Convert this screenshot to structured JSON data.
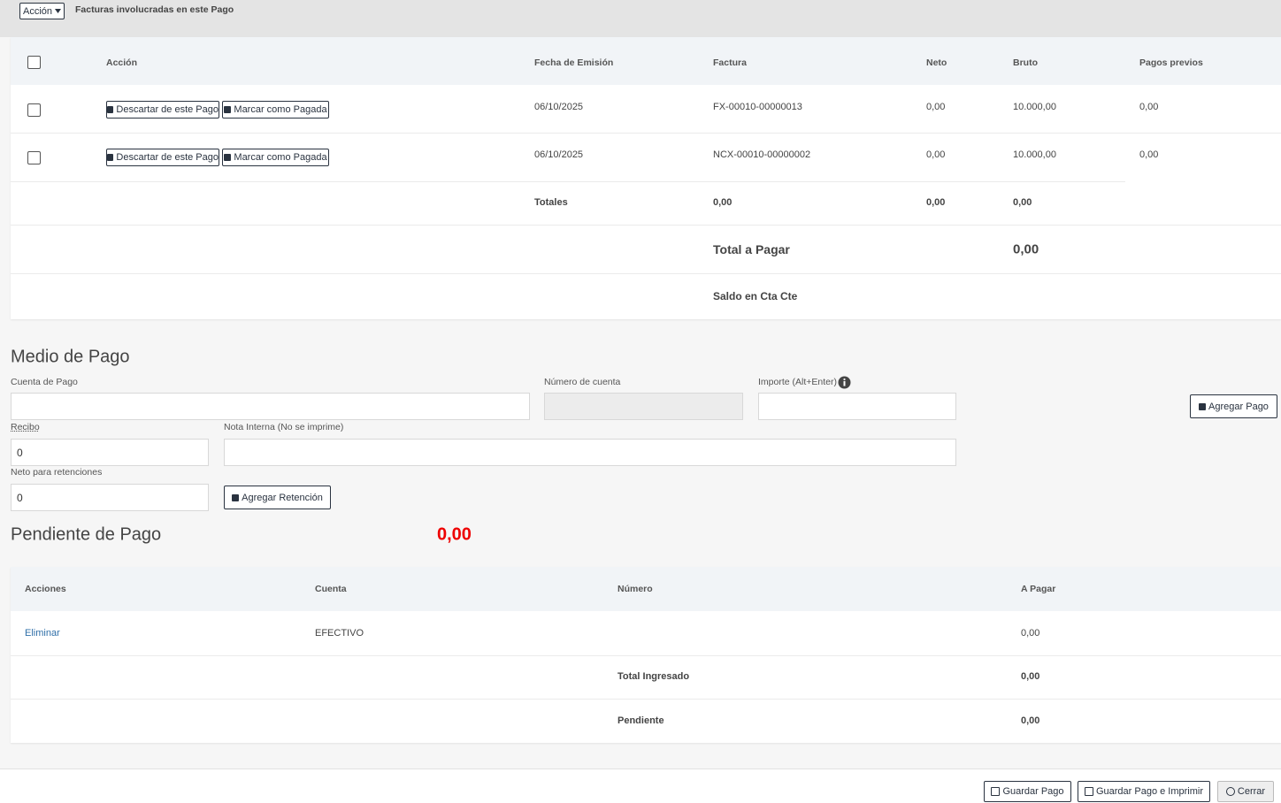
{
  "toolbar": {
    "action_button": "Acción",
    "title": "Facturas involucradas en este Pago"
  },
  "invoices": {
    "headers": [
      "Acción",
      "Fecha de Emisión",
      "Factura",
      "Neto",
      "Bruto",
      "Pagos previos"
    ],
    "discard_button": "Descartar de este Pago",
    "mark_paid_button": "Marcar como Pagada",
    "rows": [
      [
        "06/10/2025",
        "FX-00010-00000013",
        "0,00",
        "10.000,00",
        "0,00"
      ],
      [
        "06/10/2025",
        "NCX-00010-00000002",
        "0,00",
        "10.000,00",
        "0,00"
      ]
    ],
    "totals": {
      "label": "Totales",
      "factura": "0,00",
      "neto": "0,00",
      "bruto": "0,00"
    },
    "total_to_pay": {
      "label": "Total a Pagar",
      "value": "0,00"
    },
    "balance_label": "Saldo en Cta Cte"
  },
  "payment_method": {
    "title": "Medio de Pago",
    "account_label": "Cuenta de Pago",
    "account_number_label": "Número de cuenta",
    "amount_label": "Importe (Alt+Enter)",
    "add_payment_button": "Agregar Pago",
    "receipt_label": "Recibo",
    "receipt_value": "0",
    "internal_note_label": "Nota Interna (No se imprime)",
    "net_withholding_label": "Neto para retenciones",
    "net_withholding_value": "0",
    "add_withholding_button": "Agregar Retención"
  },
  "pending": {
    "title": "Pendiente de Pago",
    "value": "0,00"
  },
  "payments": {
    "headers": [
      "Acciones",
      "Cuenta",
      "Número",
      "A Pagar"
    ],
    "rows": [
      {
        "action": "Eliminar",
        "account": "EFECTIVO",
        "amount": "0,00"
      }
    ],
    "total_entered": {
      "label": "Total Ingresado",
      "value": "0,00"
    },
    "pending": {
      "label": "Pendiente",
      "value": "0,00"
    }
  },
  "footer": {
    "save": "Guardar Pago",
    "save_print": "Guardar Pago e Imprimir",
    "close": "Cerrar"
  }
}
